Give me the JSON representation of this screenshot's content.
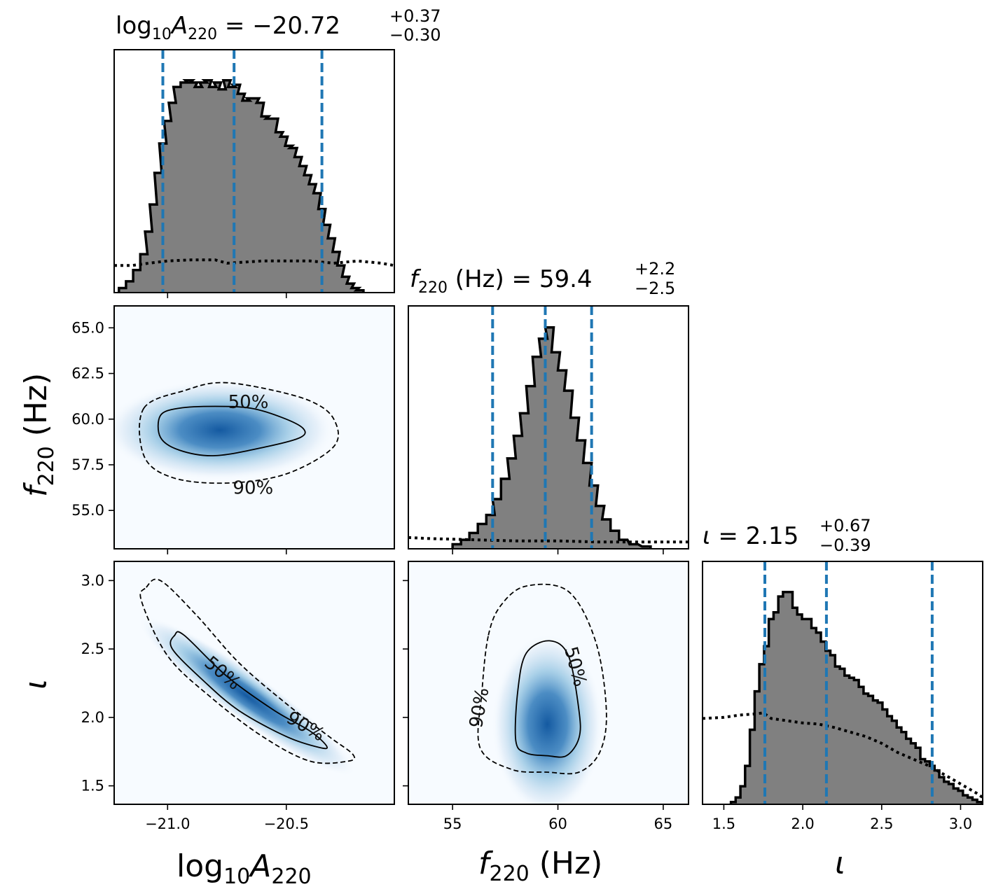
{
  "chart_data": {
    "type": "corner",
    "parameters": [
      {
        "key": "logA",
        "label": "log10A220",
        "title": {
          "prefix": "log10A220",
          "median": "-20.72",
          "plus": "+0.37",
          "minus": "-0.30"
        },
        "range": [
          -21.225,
          -20.045
        ],
        "ticks": [
          -21.0,
          -20.5
        ],
        "tick_labels": [
          "−21.0",
          "−20.5"
        ],
        "quantiles": [
          -21.02,
          -20.72,
          -20.35
        ],
        "histogram": [
          [
            -21.19,
            0.02
          ],
          [
            -21.16,
            0.05
          ],
          [
            -21.13,
            0.1
          ],
          [
            -21.1,
            0.17
          ],
          [
            -21.08,
            0.27
          ],
          [
            -21.06,
            0.39
          ],
          [
            -21.04,
            0.53
          ],
          [
            -21.02,
            0.66
          ],
          [
            -21.0,
            0.76
          ],
          [
            -20.98,
            0.84
          ],
          [
            -20.96,
            0.91
          ],
          [
            -20.93,
            0.93
          ],
          [
            -20.91,
            0.94
          ],
          [
            -20.89,
            0.93
          ],
          [
            -20.87,
            0.91
          ],
          [
            -20.85,
            0.93
          ],
          [
            -20.83,
            0.94
          ],
          [
            -20.81,
            0.91
          ],
          [
            -20.79,
            0.93
          ],
          [
            -20.77,
            0.9
          ],
          [
            -20.75,
            0.94
          ],
          [
            -20.73,
            0.91
          ],
          [
            -20.71,
            0.92
          ],
          [
            -20.69,
            0.88
          ],
          [
            -20.67,
            0.85
          ],
          [
            -20.65,
            0.86
          ],
          [
            -20.63,
            0.86
          ],
          [
            -20.61,
            0.84
          ],
          [
            -20.59,
            0.78
          ],
          [
            -20.57,
            0.77
          ],
          [
            -20.55,
            0.77
          ],
          [
            -20.53,
            0.71
          ],
          [
            -20.51,
            0.69
          ],
          [
            -20.49,
            0.65
          ],
          [
            -20.47,
            0.64
          ],
          [
            -20.45,
            0.6
          ],
          [
            -20.43,
            0.56
          ],
          [
            -20.41,
            0.52
          ],
          [
            -20.39,
            0.48
          ],
          [
            -20.37,
            0.44
          ],
          [
            -20.35,
            0.37
          ],
          [
            -20.33,
            0.3
          ],
          [
            -20.31,
            0.24
          ],
          [
            -20.29,
            0.18
          ],
          [
            -20.27,
            0.12
          ],
          [
            -20.25,
            0.07
          ],
          [
            -20.23,
            0.04
          ],
          [
            -20.21,
            0.02
          ],
          [
            -20.19,
            0.01
          ]
        ],
        "prior": [
          [
            -21.225,
            0.12
          ],
          [
            -21.15,
            0.12
          ],
          [
            -21.08,
            0.13
          ],
          [
            -21.0,
            0.14
          ],
          [
            -20.9,
            0.145
          ],
          [
            -20.8,
            0.145
          ],
          [
            -20.75,
            0.13
          ],
          [
            -20.6,
            0.14
          ],
          [
            -20.4,
            0.14
          ],
          [
            -20.3,
            0.13
          ],
          [
            -20.2,
            0.14
          ],
          [
            -20.1,
            0.13
          ],
          [
            -20.045,
            0.12
          ]
        ]
      },
      {
        "key": "f",
        "label": "f220 (Hz)",
        "title": {
          "prefix": "f220 (Hz)",
          "median": "59.4",
          "plus": "+2.2",
          "minus": "-2.5"
        },
        "range": [
          52.9,
          66.2
        ],
        "ticks": [
          55,
          57.5,
          60,
          62.5,
          65
        ],
        "tick_labels": [
          "55",
          "57.5",
          "60",
          "62.5",
          "65"
        ],
        "y_tick_labels": [
          "55.0",
          "57.5",
          "60.0",
          "62.5",
          "65.0"
        ],
        "x_ticks": [
          55,
          60,
          65
        ],
        "x_tick_labels": [
          "55",
          "60",
          "65"
        ],
        "quantiles": [
          56.9,
          59.4,
          61.6
        ],
        "histogram": [
          [
            55.2,
            0.02
          ],
          [
            55.6,
            0.04
          ],
          [
            56.0,
            0.07
          ],
          [
            56.4,
            0.11
          ],
          [
            56.8,
            0.15
          ],
          [
            57.1,
            0.22
          ],
          [
            57.5,
            0.31
          ],
          [
            57.8,
            0.4
          ],
          [
            58.1,
            0.5
          ],
          [
            58.4,
            0.6
          ],
          [
            58.7,
            0.72
          ],
          [
            59.0,
            0.85
          ],
          [
            59.3,
            0.93
          ],
          [
            59.6,
            0.98
          ],
          [
            59.9,
            0.87
          ],
          [
            60.2,
            0.79
          ],
          [
            60.5,
            0.7
          ],
          [
            60.8,
            0.58
          ],
          [
            61.1,
            0.48
          ],
          [
            61.4,
            0.38
          ],
          [
            61.7,
            0.28
          ],
          [
            62.0,
            0.19
          ],
          [
            62.3,
            0.13
          ],
          [
            62.7,
            0.08
          ],
          [
            63.1,
            0.04
          ],
          [
            63.6,
            0.02
          ],
          [
            64.2,
            0.01
          ]
        ],
        "prior": [
          [
            52.9,
            0.05
          ],
          [
            54,
            0.045
          ],
          [
            56,
            0.04
          ],
          [
            58,
            0.035
          ],
          [
            60,
            0.035
          ],
          [
            62,
            0.03
          ],
          [
            64,
            0.03
          ],
          [
            66.2,
            0.03
          ]
        ]
      },
      {
        "key": "iota",
        "label": "ι",
        "title": {
          "prefix": "ι",
          "median": "2.15",
          "plus": "+0.67",
          "minus": "-0.39"
        },
        "range": [
          1.365,
          3.14
        ],
        "ticks": [
          1.5,
          2.0,
          2.5,
          3.0
        ],
        "tick_labels": [
          "1.5",
          "2.0",
          "2.5",
          "3.0"
        ],
        "x_tick_labels": [
          "1.5",
          "2.0",
          "2.5",
          "3.0"
        ],
        "y_tick_labels": [
          "1.5",
          "2.0",
          "2.5",
          "3.0"
        ],
        "quantiles": [
          1.76,
          2.15,
          2.82
        ],
        "histogram": [
          [
            1.56,
            0.01
          ],
          [
            1.59,
            0.03
          ],
          [
            1.62,
            0.08
          ],
          [
            1.65,
            0.17
          ],
          [
            1.68,
            0.33
          ],
          [
            1.71,
            0.5
          ],
          [
            1.74,
            0.62
          ],
          [
            1.77,
            0.7
          ],
          [
            1.8,
            0.82
          ],
          [
            1.83,
            0.85
          ],
          [
            1.86,
            0.92
          ],
          [
            1.89,
            0.94
          ],
          [
            1.92,
            0.94
          ],
          [
            1.95,
            0.87
          ],
          [
            1.98,
            0.84
          ],
          [
            2.01,
            0.82
          ],
          [
            2.04,
            0.82
          ],
          [
            2.07,
            0.78
          ],
          [
            2.1,
            0.76
          ],
          [
            2.13,
            0.72
          ],
          [
            2.16,
            0.68
          ],
          [
            2.19,
            0.66
          ],
          [
            2.22,
            0.61
          ],
          [
            2.25,
            0.6
          ],
          [
            2.28,
            0.57
          ],
          [
            2.31,
            0.56
          ],
          [
            2.34,
            0.55
          ],
          [
            2.37,
            0.52
          ],
          [
            2.4,
            0.49
          ],
          [
            2.43,
            0.48
          ],
          [
            2.46,
            0.46
          ],
          [
            2.49,
            0.45
          ],
          [
            2.52,
            0.42
          ],
          [
            2.55,
            0.39
          ],
          [
            2.58,
            0.37
          ],
          [
            2.61,
            0.34
          ],
          [
            2.64,
            0.32
          ],
          [
            2.67,
            0.29
          ],
          [
            2.7,
            0.27
          ],
          [
            2.73,
            0.25
          ],
          [
            2.76,
            0.2
          ],
          [
            2.79,
            0.19
          ],
          [
            2.82,
            0.17
          ],
          [
            2.85,
            0.15
          ],
          [
            2.88,
            0.12
          ],
          [
            2.91,
            0.1
          ],
          [
            2.94,
            0.09
          ],
          [
            2.97,
            0.07
          ],
          [
            3.0,
            0.06
          ],
          [
            3.03,
            0.04
          ],
          [
            3.06,
            0.03
          ],
          [
            3.09,
            0.02
          ],
          [
            3.12,
            0.01
          ]
        ],
        "prior": [
          [
            1.365,
            0.38
          ],
          [
            1.5,
            0.385
          ],
          [
            1.6,
            0.395
          ],
          [
            1.7,
            0.4
          ],
          [
            1.75,
            0.405
          ],
          [
            1.8,
            0.38
          ],
          [
            1.9,
            0.37
          ],
          [
            2.0,
            0.36
          ],
          [
            2.1,
            0.355
          ],
          [
            2.2,
            0.34
          ],
          [
            2.3,
            0.32
          ],
          [
            2.4,
            0.3
          ],
          [
            2.5,
            0.27
          ],
          [
            2.6,
            0.23
          ],
          [
            2.7,
            0.2
          ],
          [
            2.8,
            0.17
          ],
          [
            2.9,
            0.13
          ],
          [
            3.0,
            0.09
          ],
          [
            3.1,
            0.05
          ],
          [
            3.14,
            0.03
          ]
        ]
      }
    ],
    "joint": [
      {
        "x": "logA",
        "y": "f",
        "density": {
          "cx": -20.78,
          "cy": 59.4,
          "sx": 0.22,
          "sy": 1.25,
          "rho": 0.0
        },
        "contour_labels": [
          {
            "text": "50%",
            "x": -20.66,
            "y": 60.9,
            "angle": 0
          },
          {
            "text": "90%",
            "x": -20.64,
            "y": 56.2,
            "angle": 0
          }
        ],
        "contour_50": [
          [
            -21.03,
            60.2
          ],
          [
            -20.95,
            60.6
          ],
          [
            -20.8,
            60.7
          ],
          [
            -20.65,
            60.6
          ],
          [
            -20.52,
            60.1
          ],
          [
            -20.43,
            59.5
          ],
          [
            -20.44,
            59.0
          ],
          [
            -20.58,
            58.5
          ],
          [
            -20.8,
            58.0
          ],
          [
            -20.95,
            58.3
          ],
          [
            -21.03,
            59.0
          ]
        ],
        "contour_90": [
          [
            -21.1,
            60.6
          ],
          [
            -20.92,
            61.6
          ],
          [
            -20.78,
            62.0
          ],
          [
            -20.6,
            61.7
          ],
          [
            -20.4,
            61.0
          ],
          [
            -20.3,
            60.0
          ],
          [
            -20.3,
            58.5
          ],
          [
            -20.5,
            57.0
          ],
          [
            -20.75,
            56.5
          ],
          [
            -20.98,
            56.8
          ],
          [
            -21.1,
            58.0
          ]
        ]
      },
      {
        "x": "logA",
        "y": "iota",
        "density": {
          "cx": -20.62,
          "cy": 2.18,
          "sx": 0.2,
          "sy": 0.35,
          "rho": -0.97
        },
        "contour_labels": [
          {
            "text": "50%",
            "x": -20.77,
            "y": 2.32,
            "angle": 40
          },
          {
            "text": "90%",
            "x": -20.42,
            "y": 1.93,
            "angle": 30
          }
        ],
        "contour_50": [
          [
            -20.97,
            2.6
          ],
          [
            -20.93,
            2.6
          ],
          [
            -20.75,
            2.3
          ],
          [
            -20.55,
            2.05
          ],
          [
            -20.4,
            1.9
          ],
          [
            -20.33,
            1.79
          ],
          [
            -20.36,
            1.78
          ],
          [
            -20.5,
            1.86
          ],
          [
            -20.7,
            2.05
          ],
          [
            -20.85,
            2.27
          ],
          [
            -20.98,
            2.5
          ]
        ],
        "contour_90": [
          [
            -21.09,
            2.95
          ],
          [
            -21.03,
            3.0
          ],
          [
            -20.88,
            2.75
          ],
          [
            -20.7,
            2.4
          ],
          [
            -20.5,
            2.1
          ],
          [
            -20.32,
            1.86
          ],
          [
            -20.22,
            1.73
          ],
          [
            -20.24,
            1.68
          ],
          [
            -20.4,
            1.68
          ],
          [
            -20.6,
            1.86
          ],
          [
            -20.82,
            2.15
          ],
          [
            -21.0,
            2.45
          ],
          [
            -21.11,
            2.85
          ]
        ]
      },
      {
        "x": "f",
        "y": "iota",
        "density": {
          "cx": 59.5,
          "cy": 1.95,
          "sx": 1.2,
          "sy": 0.3,
          "rho": 0.0
        },
        "contour_labels": [
          {
            "text": "50%",
            "x": 60.8,
            "y": 2.37,
            "angle": 75
          },
          {
            "text": "90%",
            "x": 56.3,
            "y": 2.07,
            "angle": -80
          }
        ],
        "contour_50": [
          [
            58.1,
            2.2
          ],
          [
            58.5,
            2.47
          ],
          [
            59.6,
            2.56
          ],
          [
            60.5,
            2.45
          ],
          [
            61.0,
            2.05
          ],
          [
            61.0,
            1.85
          ],
          [
            60.4,
            1.72
          ],
          [
            59.5,
            1.72
          ],
          [
            58.5,
            1.74
          ],
          [
            58.0,
            1.83
          ]
        ],
        "contour_90": [
          [
            56.7,
            2.6
          ],
          [
            57.3,
            2.82
          ],
          [
            58.5,
            2.96
          ],
          [
            60.5,
            2.92
          ],
          [
            61.8,
            2.55
          ],
          [
            62.3,
            2.05
          ],
          [
            62.0,
            1.75
          ],
          [
            61.0,
            1.6
          ],
          [
            59.5,
            1.6
          ],
          [
            57.8,
            1.62
          ],
          [
            56.3,
            1.78
          ],
          [
            56.4,
            2.2
          ]
        ]
      }
    ]
  },
  "text": {
    "title_logA_main": "log",
    "title_logA_sub10": "10",
    "title_logA_A": "A",
    "title_logA_sub220": "220",
    "title_logA_eq": " = −20.72",
    "title_logA_plus": "+0.37",
    "title_logA_minus": "−0.30",
    "title_f_f": "f",
    "title_f_sub": "220",
    "title_f_eq": " (Hz) = 59.4",
    "title_f_plus": "+2.2",
    "title_f_minus": "−2.5",
    "title_iota_sym": "ι",
    "title_iota_eq": " = 2.15",
    "title_iota_plus": "+0.67",
    "title_iota_minus": "−0.39",
    "xlabel_logA_log": "log",
    "xlabel_logA_10": "10",
    "xlabel_logA_A": "A",
    "xlabel_logA_220": "220",
    "xlabel_f_f": "f",
    "xlabel_f_220": "220",
    "xlabel_f_unit": " (Hz)",
    "xlabel_iota": "ι",
    "ylabel_f_f": "f",
    "ylabel_f_220": "220",
    "ylabel_f_unit": " (Hz)",
    "ylabel_iota": "ι"
  },
  "colors": {
    "hist_fill": "#808080",
    "hist_edge": "#000000",
    "quantile_line": "#1f77b4",
    "prior_line": "#000000",
    "density_low": "#f7fbff",
    "density_high": "#08306b"
  }
}
